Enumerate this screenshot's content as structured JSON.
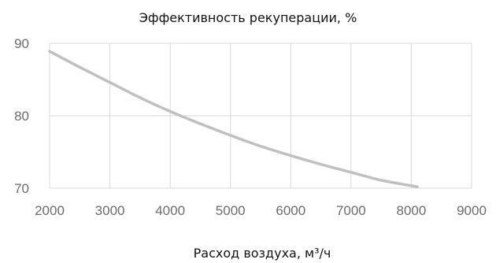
{
  "chart_data": {
    "type": "line",
    "title": "Эффективность рекуперации, %",
    "xlabel": "Расход воздуха, м³/ч",
    "ylabel": "",
    "xlim": [
      2000,
      9000
    ],
    "ylim": [
      70,
      90
    ],
    "xticks": [
      2000,
      3000,
      4000,
      5000,
      6000,
      7000,
      8000,
      9000
    ],
    "yticks": [
      70,
      80,
      90
    ],
    "grid": true,
    "line_color": "#c0c0c0",
    "grid_color": "#d9d9d9",
    "series": [
      {
        "x": [
          2000,
          2500,
          3000,
          3500,
          4000,
          4500,
          5000,
          5500,
          6000,
          6500,
          7000,
          7500,
          8100
        ],
        "y": [
          88.9,
          86.7,
          84.6,
          82.5,
          80.6,
          78.9,
          77.3,
          75.8,
          74.5,
          73.3,
          72.2,
          71.1,
          70.2
        ]
      }
    ]
  }
}
